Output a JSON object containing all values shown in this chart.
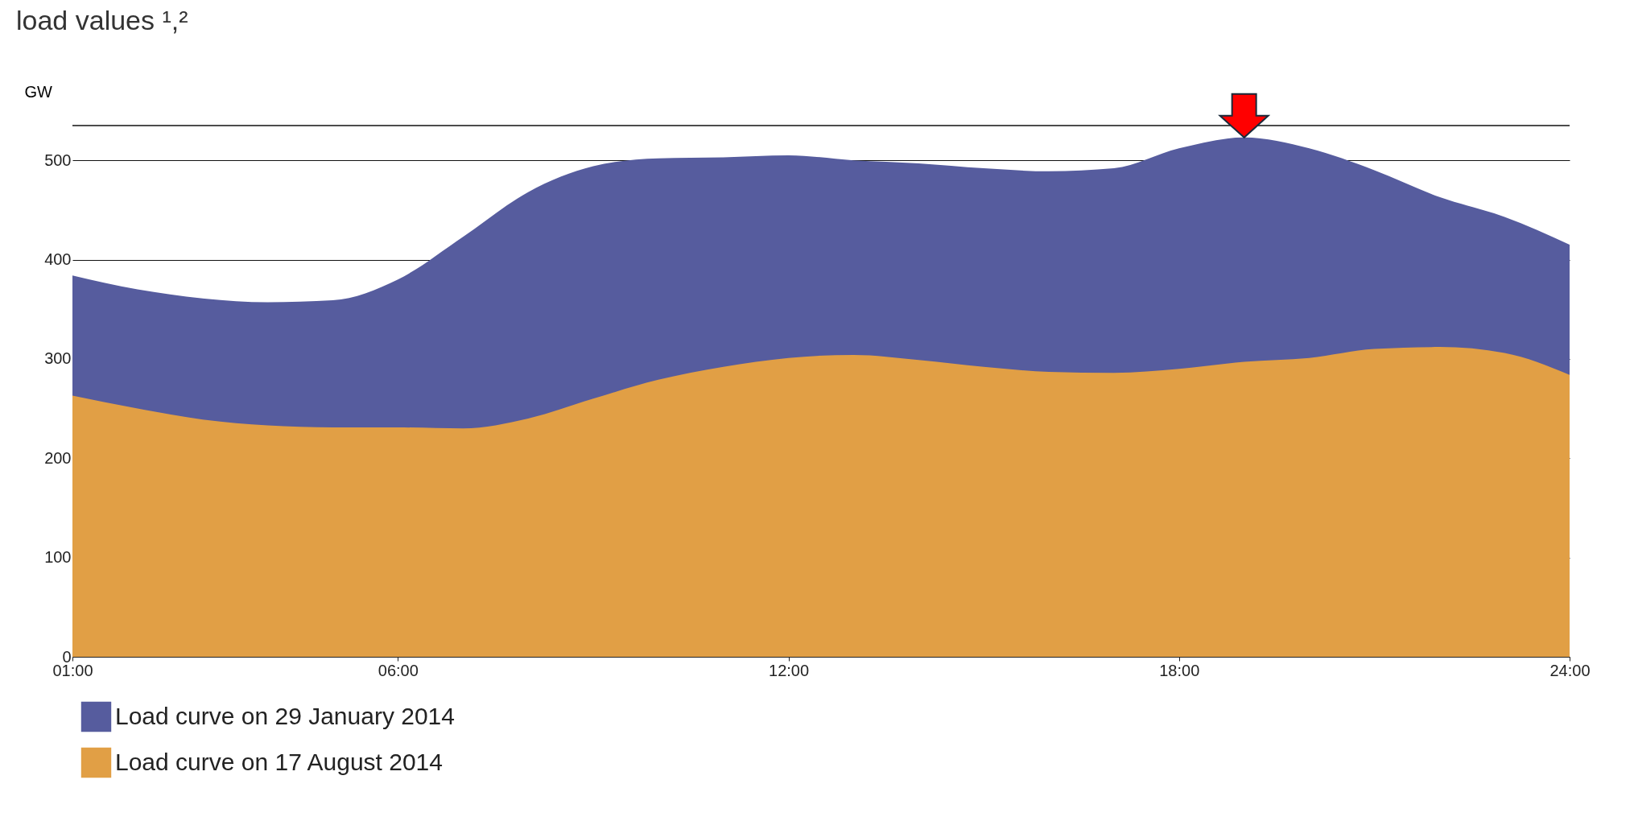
{
  "chart_data": {
    "type": "area",
    "title": "load values ¹,²",
    "ylabel": "GW",
    "x": [
      1,
      2,
      3,
      4,
      5,
      6,
      7,
      8,
      9,
      10,
      11,
      12,
      13,
      14,
      15,
      16,
      17,
      18,
      19,
      20,
      21,
      22,
      23,
      24
    ],
    "series": [
      {
        "name": "Load curve on 29 January 2014",
        "color": "#565c9e",
        "values": [
          384,
          370,
          361,
          357,
          359,
          380,
          423,
          468,
          494,
          502,
          503,
          505,
          500,
          497,
          492,
          489,
          492,
          512,
          523,
          512,
          490,
          463,
          443,
          415
        ]
      },
      {
        "name": "Load curve on 17 August 2014",
        "color": "#e19f45",
        "values": [
          263,
          250,
          239,
          233,
          231,
          231,
          230,
          240,
          260,
          279,
          292,
          301,
          304,
          299,
          292,
          287,
          286,
          290,
          297,
          301,
          310,
          312,
          306,
          284
        ]
      }
    ],
    "xlim": [
      1,
      24
    ],
    "xticks": [
      {
        "value": 1,
        "label": "01:00"
      },
      {
        "value": 6,
        "label": "06:00"
      },
      {
        "value": 12,
        "label": "12:00"
      },
      {
        "value": 18,
        "label": "18:00"
      },
      {
        "value": 24,
        "label": "24:00"
      }
    ],
    "ylim": [
      0,
      535
    ],
    "yticks": [
      0,
      100,
      200,
      300,
      400,
      500
    ],
    "grid": "y",
    "legend": "bottom"
  }
}
